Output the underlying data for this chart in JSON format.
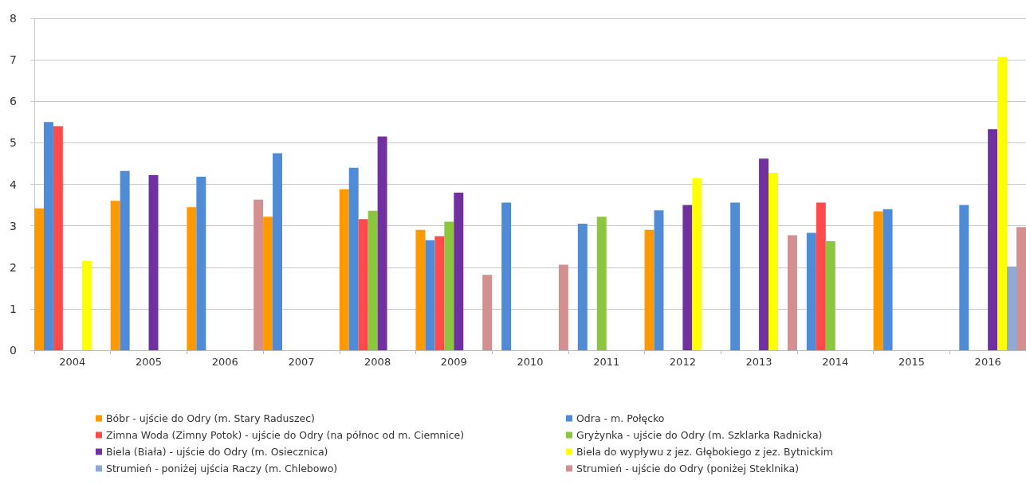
{
  "chart_data": {
    "type": "bar",
    "categories": [
      "2004",
      "2005",
      "2006",
      "2007",
      "2008",
      "2009",
      "2010",
      "2011",
      "2012",
      "2013",
      "2014",
      "2015",
      "2016"
    ],
    "series": [
      {
        "name": "Bóbr - ujście do Odry (m. Stary Raduszec)",
        "color": "#ff9900",
        "values": [
          3.42,
          3.6,
          3.45,
          3.22,
          3.88,
          2.9,
          null,
          null,
          2.9,
          null,
          null,
          3.35,
          null
        ]
      },
      {
        "name": "Odra - m. Połęcko",
        "color": "#4f8bd6",
        "values": [
          5.5,
          4.32,
          4.18,
          4.75,
          4.4,
          2.65,
          3.56,
          3.05,
          3.37,
          3.56,
          2.83,
          3.4,
          3.5
        ]
      },
      {
        "name": "Zimna Woda (Zimny Potok) - ujście do Odry (na północ od m. Ciemnice)",
        "color": "#ff4b4b",
        "values": [
          5.4,
          null,
          null,
          null,
          3.16,
          2.75,
          null,
          null,
          null,
          null,
          3.56,
          null,
          null
        ]
      },
      {
        "name": "Gryżynka - ujście do Odry (m. Szklarka Radnicka)",
        "color": "#8cc63f",
        "values": [
          null,
          null,
          null,
          null,
          3.36,
          3.1,
          null,
          3.22,
          null,
          null,
          2.63,
          null,
          null
        ]
      },
      {
        "name": "Biela (Biała) - ujście do Odry (m. Osiecznica)",
        "color": "#7030a0",
        "values": [
          null,
          4.22,
          null,
          null,
          5.15,
          3.8,
          null,
          null,
          3.5,
          4.62,
          null,
          null,
          5.33
        ]
      },
      {
        "name": "Biela do wypływu z jez. Głębokiego z jez. Bytnickim",
        "color": "#ffff00",
        "values": [
          2.15,
          null,
          null,
          null,
          null,
          null,
          null,
          null,
          4.15,
          4.28,
          null,
          null,
          7.07
        ]
      },
      {
        "name": "Strumień - poniżej ujścia Raczy (m. Chlebowo)",
        "color": "#8fa9d6",
        "values": [
          null,
          null,
          null,
          null,
          null,
          null,
          null,
          null,
          null,
          null,
          null,
          null,
          2.02
        ]
      },
      {
        "name": "Strumień - ujście do Odry (poniżej Steklnika)",
        "color": "#d49090",
        "values": [
          null,
          null,
          3.63,
          null,
          null,
          1.82,
          2.06,
          null,
          null,
          2.77,
          null,
          null,
          2.97
        ]
      }
    ],
    "ylim": [
      0,
      8
    ],
    "yticks": [
      0,
      1,
      2,
      3,
      4,
      5,
      6,
      7,
      8
    ],
    "grid": "y",
    "legend": "bottom"
  }
}
